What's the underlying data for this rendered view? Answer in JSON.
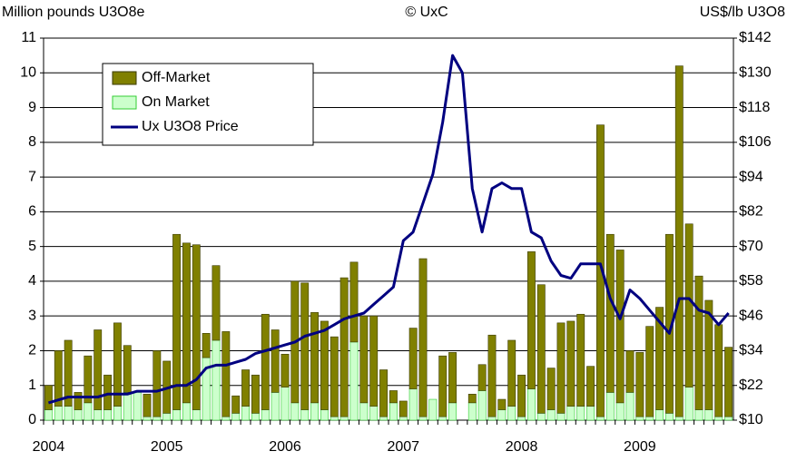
{
  "chart_data": {
    "type": "bar",
    "title": "© UxC",
    "y_label": "Million pounds U3O8e",
    "y2_label": "US$/lb U3O8",
    "stacked": true,
    "grid": true,
    "categories": [
      "2004",
      null,
      null,
      null,
      null,
      null,
      null,
      null,
      null,
      null,
      null,
      null,
      "2005",
      null,
      null,
      null,
      null,
      null,
      null,
      null,
      null,
      null,
      null,
      null,
      "2006",
      null,
      null,
      null,
      null,
      null,
      null,
      null,
      null,
      null,
      null,
      null,
      "2007",
      null,
      null,
      null,
      null,
      null,
      null,
      null,
      null,
      null,
      null,
      null,
      "2008",
      null,
      null,
      null,
      null,
      null,
      null,
      null,
      null,
      null,
      null,
      null,
      "2009",
      null,
      null,
      null,
      null,
      null,
      null,
      null,
      null,
      null
    ],
    "series": [
      {
        "name": "Off-Market",
        "color": "#808000",
        "type": "bar",
        "values": [
          0.7,
          1.6,
          1.9,
          0.5,
          1.35,
          2.3,
          1.0,
          2.4,
          1.35,
          0,
          0.65,
          1.9,
          1.5,
          5.05,
          4.6,
          4.75,
          0.7,
          2.15,
          2.45,
          0.5,
          1.05,
          1.1,
          2.75,
          1.8,
          0.95,
          3.5,
          3.65,
          2.6,
          2.55,
          2.3,
          4.0,
          2.3,
          2.5,
          2.6,
          1.35,
          0.35,
          0.45,
          1.75,
          4.55,
          0,
          1.75,
          1.45,
          0,
          0.25,
          0.75,
          2.35,
          0.3,
          1.9,
          1.2,
          3.95,
          3.7,
          1.2,
          2.6,
          2.45,
          2.65,
          1.15,
          8.4,
          4.55,
          4.4,
          1.2,
          1.85,
          2.6,
          2.95,
          5.15,
          10.1,
          4.7,
          3.85,
          3.15,
          2.65,
          2.0
        ]
      },
      {
        "name": "On Market",
        "color": "#ccffcc",
        "type": "bar",
        "values": [
          0.3,
          0.4,
          0.4,
          0.3,
          0.5,
          0.3,
          0.3,
          0.4,
          0.8,
          0.8,
          0.1,
          0.1,
          0.2,
          0.3,
          0.5,
          0.3,
          1.8,
          2.3,
          0.1,
          0.2,
          0.4,
          0.2,
          0.3,
          0.8,
          0.95,
          0.5,
          0.3,
          0.5,
          0.3,
          0.1,
          0.1,
          2.25,
          0.5,
          0.4,
          0.1,
          0.5,
          0.1,
          0.9,
          0.1,
          0.6,
          0.1,
          0.5,
          0,
          0.5,
          0.85,
          0.1,
          0.3,
          0.4,
          0.1,
          0.9,
          0.2,
          0.3,
          0.2,
          0.4,
          0.4,
          0.4,
          0.1,
          0.8,
          0.5,
          0.8,
          0.1,
          0.1,
          0.3,
          0.2,
          0.1,
          0.95,
          0.3,
          0.3,
          0.1,
          0.1
        ]
      },
      {
        "name": "Ux U3O8 Price",
        "color": "#000080",
        "type": "line",
        "axis": "y2",
        "values": [
          16,
          17,
          18,
          18,
          18,
          18,
          19,
          19,
          19,
          20,
          20,
          20,
          21,
          22,
          22,
          24,
          28,
          29,
          29,
          30,
          31,
          33,
          34,
          35,
          36,
          37,
          39,
          40,
          41,
          43,
          45,
          46,
          47,
          50,
          53,
          56,
          72,
          75,
          85,
          95,
          113,
          136,
          130,
          90,
          75,
          90,
          92,
          90,
          90,
          75,
          73,
          65,
          60,
          59,
          64,
          64,
          64,
          52,
          45,
          55,
          52,
          48,
          44,
          40,
          52,
          52,
          48,
          47,
          43,
          47
        ]
      }
    ],
    "ylim": [
      0,
      11
    ],
    "yticks": [
      0,
      1,
      2,
      3,
      4,
      5,
      6,
      7,
      8,
      9,
      10,
      11
    ],
    "y2lim": [
      10,
      142
    ],
    "y2ticks": [
      {
        "value": 10,
        "label": "$10"
      },
      {
        "value": 22,
        "label": "$22"
      },
      {
        "value": 34,
        "label": "$34"
      },
      {
        "value": 46,
        "label": "$46"
      },
      {
        "value": 58,
        "label": "$58"
      },
      {
        "value": 70,
        "label": "$70"
      },
      {
        "value": 82,
        "label": "$82"
      },
      {
        "value": 94,
        "label": "$94"
      },
      {
        "value": 106,
        "label": "$106"
      },
      {
        "value": 118,
        "label": "$118"
      },
      {
        "value": 130,
        "label": "$130"
      },
      {
        "value": 142,
        "label": "$142"
      }
    ]
  }
}
